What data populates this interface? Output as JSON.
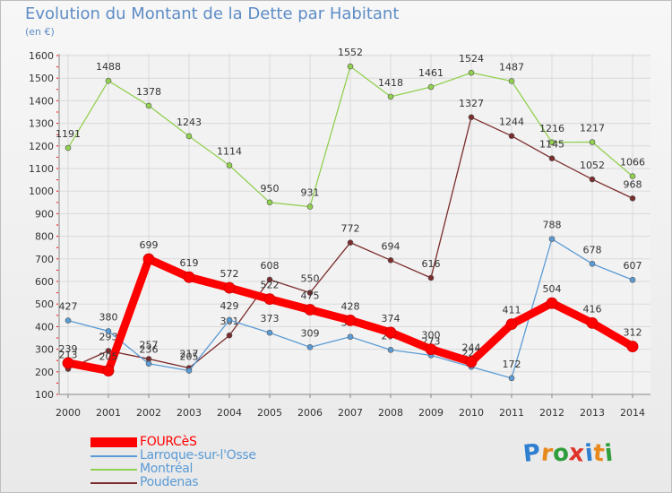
{
  "header": {
    "title": "Evolution du Montant de la Dette par Habitant",
    "unit": "(en €)"
  },
  "logo": {
    "letters": [
      "P",
      "r",
      "o",
      "x",
      "i",
      "t",
      "i"
    ],
    "colors": [
      "#2f7fd1",
      "#e8891d",
      "#2f9e3b",
      "#e0332b",
      "#2f7fd1",
      "#e8891d",
      "#2f9e3b"
    ]
  },
  "chart_data": {
    "type": "line",
    "title": "Evolution du Montant de la Dette par Habitant",
    "ylabel": "(en €)",
    "xlabel": "",
    "x": [
      "2000",
      "2001",
      "2002",
      "2003",
      "2004",
      "2005",
      "2006",
      "2007",
      "2008",
      "2009",
      "2010",
      "2011",
      "2012",
      "2013",
      "2014"
    ],
    "ylim": [
      100,
      1600
    ],
    "yticks": [
      100,
      200,
      300,
      400,
      500,
      600,
      700,
      800,
      900,
      1000,
      1100,
      1200,
      1300,
      1400,
      1500,
      1600
    ],
    "grid": true,
    "legend_position": "bottom-left",
    "series": [
      {
        "name": "Larroque-sur-l'Osse",
        "color": "#5b9bd5",
        "values": [
          427,
          380,
          236,
          205,
          429,
          373,
          309,
          355,
          297,
          273,
          222,
          172,
          788,
          678,
          607
        ],
        "labels": [
          "427",
          "380",
          "236",
          "205",
          "429",
          "373",
          "309",
          "355",
          "297",
          "273",
          "222",
          "172",
          "788",
          "678",
          "607"
        ]
      },
      {
        "name": "Montréal",
        "color": "#92d050",
        "values": [
          1191,
          1488,
          1378,
          1243,
          1114,
          950,
          931,
          1552,
          1418,
          1461,
          1524,
          1487,
          1216,
          1217,
          1066
        ],
        "labels": [
          "1191",
          "1488",
          "1378",
          "1243",
          "1114",
          "950",
          "931",
          "1552",
          "1418",
          "1461",
          "1524",
          "1487",
          "1216",
          "1217",
          "1066"
        ]
      },
      {
        "name": "Poudenas",
        "color": "#7b2c2c",
        "values": [
          213,
          293,
          257,
          217,
          361,
          608,
          550,
          772,
          694,
          616,
          1327,
          1244,
          1145,
          1052,
          968
        ],
        "labels": [
          "213",
          "293",
          "257",
          "217",
          "361",
          "608",
          "550",
          "772",
          "694",
          "616",
          "1327",
          "1244",
          "1145",
          "1052",
          "968"
        ]
      },
      {
        "name": "FOURCèS",
        "color": "#ff0000",
        "values": [
          239,
          205,
          699,
          619,
          572,
          522,
          475,
          428,
          374,
          300,
          244,
          411,
          504,
          416,
          312
        ],
        "labels": [
          "239",
          "205",
          "699",
          "619",
          "572",
          "522",
          "475",
          "428",
          "374",
          "300",
          "244",
          "411",
          "504",
          "416",
          "312"
        ]
      }
    ],
    "legend": [
      "FOURCèS",
      "Larroque-sur-l'Osse",
      "Montréal",
      "Poudenas"
    ]
  }
}
